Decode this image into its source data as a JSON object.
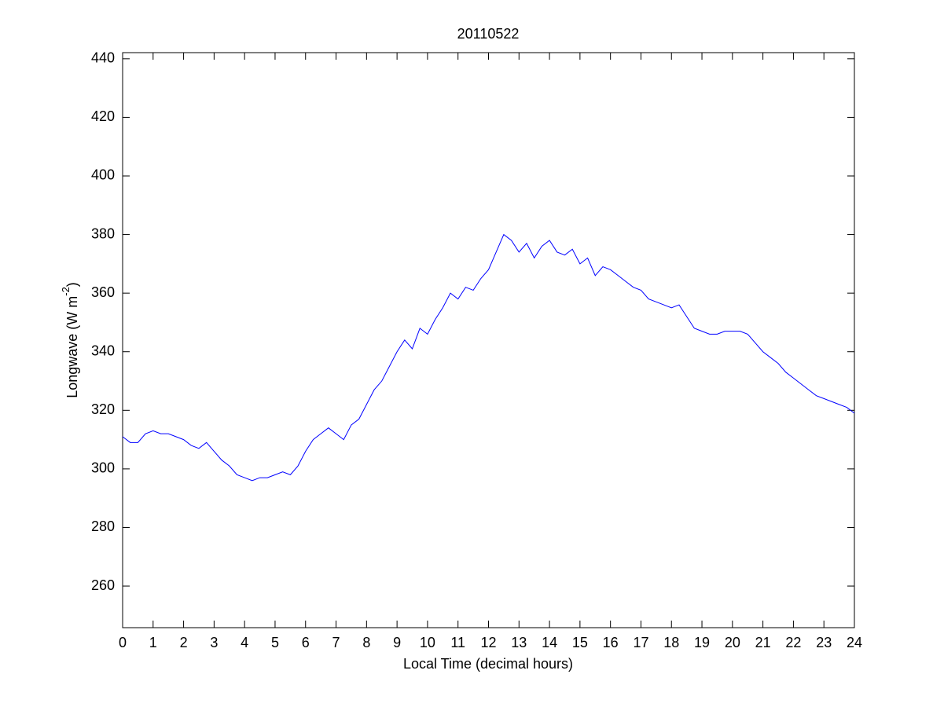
{
  "chart_data": {
    "type": "line",
    "title": "20110522",
    "x_label": "Local Time (decimal hours)",
    "y_label_parts": [
      "Longwave (W m",
      "-2",
      ")"
    ],
    "x": [
      0,
      0.25,
      0.5,
      0.75,
      1,
      1.25,
      1.5,
      1.75,
      2,
      2.25,
      2.5,
      2.75,
      3,
      3.25,
      3.5,
      3.75,
      4,
      4.25,
      4.5,
      4.75,
      5,
      5.25,
      5.5,
      5.75,
      6,
      6.25,
      6.5,
      6.75,
      7,
      7.25,
      7.5,
      7.75,
      8,
      8.25,
      8.5,
      8.75,
      9,
      9.25,
      9.5,
      9.75,
      10,
      10.25,
      10.5,
      10.75,
      11,
      11.25,
      11.5,
      11.75,
      12,
      12.25,
      12.5,
      12.75,
      13,
      13.25,
      13.5,
      13.75,
      14,
      14.25,
      14.5,
      14.75,
      15,
      15.25,
      15.5,
      15.75,
      16,
      16.25,
      16.5,
      16.75,
      17,
      17.25,
      17.5,
      17.75,
      18,
      18.25,
      18.5,
      18.75,
      19,
      19.25,
      19.5,
      19.75,
      20,
      20.25,
      20.5,
      20.75,
      21,
      21.25,
      21.5,
      21.75,
      22,
      22.25,
      22.5,
      22.75,
      23,
      23.25,
      23.5,
      23.75,
      24
    ],
    "series": [
      {
        "color": "#0000ff",
        "values": [
          311,
          309,
          309,
          312,
          313,
          312,
          312,
          311,
          310,
          308,
          307,
          309,
          306,
          303,
          301,
          298,
          297,
          296,
          297,
          297,
          298,
          299,
          298,
          301,
          306,
          310,
          312,
          314,
          312,
          310,
          315,
          317,
          322,
          327,
          330,
          335,
          340,
          344,
          341,
          348,
          346,
          351,
          355,
          360,
          358,
          362,
          361,
          365,
          368,
          374,
          380,
          378,
          374,
          377,
          372,
          376,
          378,
          374,
          373,
          375,
          370,
          372,
          366,
          369,
          368,
          366,
          364,
          362,
          361,
          358,
          357,
          356,
          355,
          356,
          352,
          348,
          347,
          346,
          346,
          347,
          347,
          347,
          346,
          343,
          340,
          338,
          336,
          333,
          331,
          329,
          327,
          325,
          324,
          323,
          322,
          321,
          319
        ]
      }
    ],
    "xlim": [
      0,
      24
    ],
    "ylim": [
      245.8,
      442.1
    ],
    "xticks": [
      0,
      1,
      2,
      3,
      4,
      5,
      6,
      7,
      8,
      9,
      10,
      11,
      12,
      13,
      14,
      15,
      16,
      17,
      18,
      19,
      20,
      21,
      22,
      23,
      24
    ],
    "yticks": [
      260,
      280,
      300,
      320,
      340,
      360,
      380,
      400,
      420,
      440
    ]
  }
}
